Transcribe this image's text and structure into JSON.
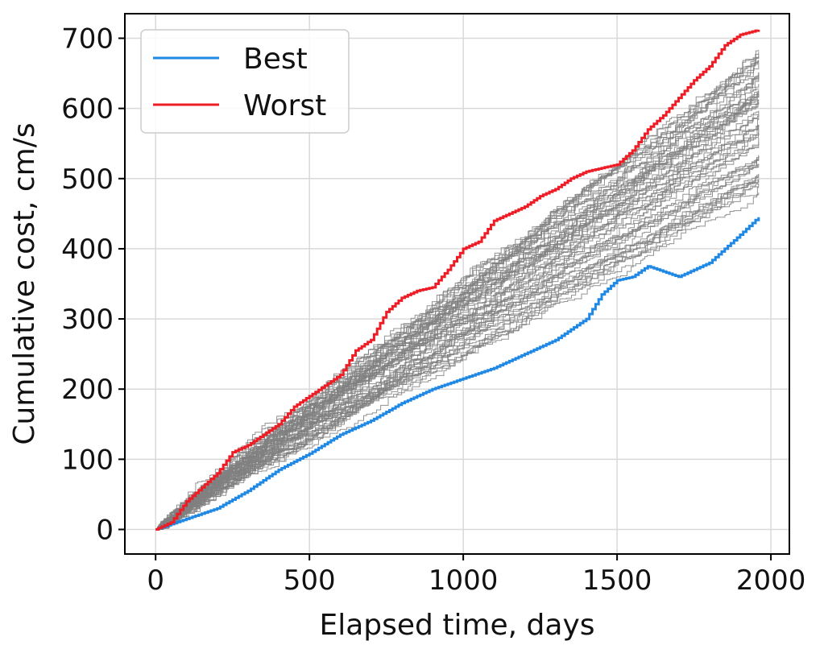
{
  "chart_data": {
    "type": "line",
    "xlabel": "Elapsed time, days",
    "ylabel": "Cumulative cost, cm/s",
    "xlim": [
      -100,
      2060
    ],
    "ylim": [
      -35,
      735
    ],
    "xticks": [
      0,
      500,
      1000,
      1500,
      2000
    ],
    "yticks": [
      0,
      100,
      200,
      300,
      400,
      500,
      600,
      700
    ],
    "grid": true,
    "legend_position": "top-left",
    "colors": {
      "best": "#1f88e5",
      "worst": "#ee1c25",
      "ensemble": "#808080",
      "grid": "#d9d9d9"
    },
    "ensemble": {
      "count": 60,
      "x_end": 1960,
      "final_min": 470,
      "final_max": 675,
      "step_interval": 15
    },
    "series": [
      {
        "name": "Best",
        "color": "#1f88e5",
        "x": [
          0,
          100,
          200,
          300,
          400,
          500,
          600,
          700,
          800,
          900,
          1000,
          1100,
          1200,
          1300,
          1400,
          1450,
          1500,
          1550,
          1600,
          1700,
          1800,
          1900,
          1960
        ],
        "y": [
          0,
          15,
          30,
          55,
          85,
          108,
          135,
          155,
          180,
          200,
          215,
          230,
          250,
          270,
          300,
          335,
          355,
          360,
          375,
          360,
          380,
          420,
          445
        ]
      },
      {
        "name": "Worst",
        "color": "#ee1c25",
        "x": [
          0,
          50,
          100,
          150,
          200,
          250,
          300,
          350,
          400,
          450,
          500,
          550,
          600,
          650,
          700,
          750,
          800,
          850,
          900,
          950,
          1000,
          1050,
          1100,
          1150,
          1200,
          1250,
          1300,
          1350,
          1400,
          1450,
          1500,
          1550,
          1600,
          1650,
          1700,
          1750,
          1800,
          1850,
          1900,
          1960
        ],
        "y": [
          0,
          10,
          40,
          60,
          80,
          110,
          120,
          135,
          150,
          175,
          190,
          205,
          220,
          255,
          270,
          310,
          330,
          340,
          345,
          370,
          400,
          410,
          440,
          450,
          460,
          475,
          485,
          500,
          510,
          515,
          520,
          540,
          570,
          590,
          615,
          640,
          660,
          690,
          705,
          712
        ]
      }
    ]
  }
}
